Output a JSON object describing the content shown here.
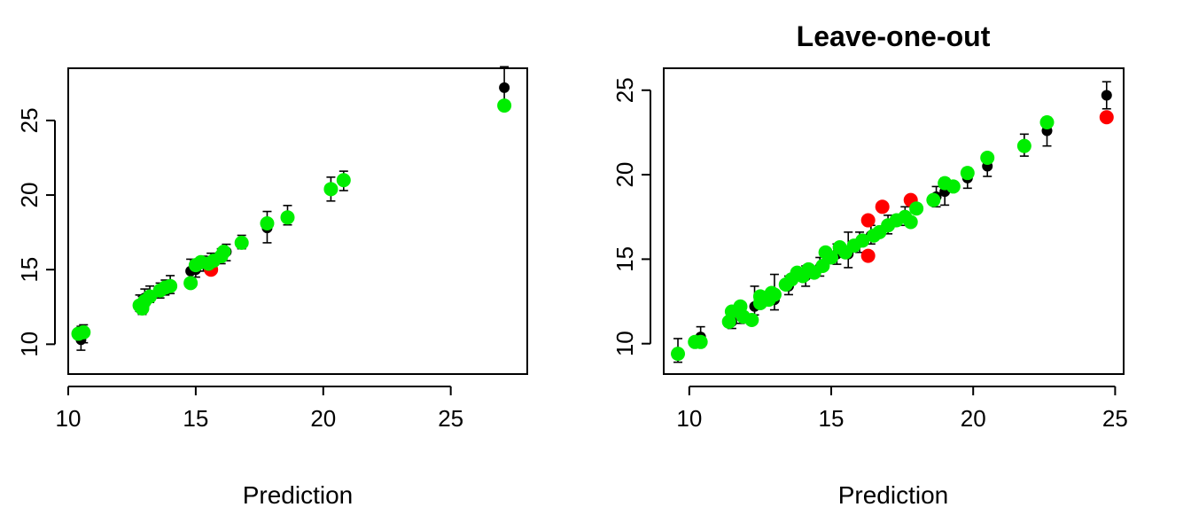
{
  "chart_data": [
    {
      "type": "scatter",
      "title": "",
      "xlabel": "Prediction",
      "ylabel": "",
      "xlim": [
        10,
        28
      ],
      "ylim": [
        8,
        28.5
      ],
      "x_ticks": [
        10,
        15,
        20,
        25
      ],
      "y_ticks": [
        10,
        15,
        20,
        25
      ],
      "grid": false,
      "colors": {
        "black": "#000000",
        "red": "#ff0000",
        "green": "#00ee00"
      },
      "black_points": [
        {
          "x": 10.5,
          "y": 10.3,
          "lo": 9.6,
          "hi": 11.2
        },
        {
          "x": 10.6,
          "y": 10.8,
          "lo": 10.1,
          "hi": 11.3
        },
        {
          "x": 12.8,
          "y": 12.7,
          "lo": 12.2,
          "hi": 13.3
        },
        {
          "x": 12.9,
          "y": 12.6,
          "lo": 12.0,
          "hi": 13.2
        },
        {
          "x": 13.0,
          "y": 13.1,
          "lo": 12.5,
          "hi": 13.7
        },
        {
          "x": 13.2,
          "y": 13.3,
          "lo": 12.8,
          "hi": 13.9
        },
        {
          "x": 13.6,
          "y": 13.6,
          "lo": 13.1,
          "hi": 14.1
        },
        {
          "x": 13.8,
          "y": 13.8,
          "lo": 13.3,
          "hi": 14.3
        },
        {
          "x": 14.0,
          "y": 14.0,
          "lo": 13.4,
          "hi": 14.6
        },
        {
          "x": 14.8,
          "y": 14.9,
          "lo": 14.1,
          "hi": 15.7
        },
        {
          "x": 15.0,
          "y": 15.0,
          "lo": 14.5,
          "hi": 15.6
        },
        {
          "x": 15.3,
          "y": 15.4,
          "lo": 14.9,
          "hi": 15.9
        },
        {
          "x": 15.6,
          "y": 15.6,
          "lo": 15.1,
          "hi": 16.1
        },
        {
          "x": 16.0,
          "y": 15.9,
          "lo": 15.4,
          "hi": 16.4
        },
        {
          "x": 16.2,
          "y": 16.2,
          "lo": 15.6,
          "hi": 16.7
        },
        {
          "x": 16.8,
          "y": 16.8,
          "lo": 16.4,
          "hi": 17.3
        },
        {
          "x": 17.8,
          "y": 17.8,
          "lo": 16.8,
          "hi": 18.9
        },
        {
          "x": 18.6,
          "y": 18.6,
          "lo": 18.0,
          "hi": 19.3
        },
        {
          "x": 20.3,
          "y": 20.4,
          "lo": 19.6,
          "hi": 21.2
        },
        {
          "x": 20.8,
          "y": 21.0,
          "lo": 20.3,
          "hi": 21.6
        },
        {
          "x": 27.1,
          "y": 27.2,
          "lo": 26.3,
          "hi": 28.6
        }
      ],
      "red_points": [
        {
          "x": 15.6,
          "y": 15.0
        }
      ],
      "green_points": [
        {
          "x": 10.4,
          "y": 10.7
        },
        {
          "x": 10.6,
          "y": 10.8
        },
        {
          "x": 12.8,
          "y": 12.6
        },
        {
          "x": 12.9,
          "y": 12.4
        },
        {
          "x": 13.0,
          "y": 12.9
        },
        {
          "x": 13.2,
          "y": 13.2
        },
        {
          "x": 13.6,
          "y": 13.6
        },
        {
          "x": 13.8,
          "y": 13.8
        },
        {
          "x": 14.0,
          "y": 13.9
        },
        {
          "x": 14.8,
          "y": 14.1
        },
        {
          "x": 15.0,
          "y": 15.3
        },
        {
          "x": 15.2,
          "y": 15.5
        },
        {
          "x": 15.5,
          "y": 15.4
        },
        {
          "x": 15.7,
          "y": 15.6
        },
        {
          "x": 16.0,
          "y": 15.9
        },
        {
          "x": 16.1,
          "y": 16.2
        },
        {
          "x": 16.8,
          "y": 16.8
        },
        {
          "x": 17.8,
          "y": 18.1
        },
        {
          "x": 18.6,
          "y": 18.5
        },
        {
          "x": 20.3,
          "y": 20.4
        },
        {
          "x": 20.8,
          "y": 21.0
        },
        {
          "x": 27.1,
          "y": 26.0
        }
      ]
    },
    {
      "type": "scatter",
      "title": "Leave-one-out",
      "xlabel": "Prediction",
      "ylabel": "",
      "xlim": [
        9.1,
        25.3
      ],
      "ylim": [
        8.2,
        26.3
      ],
      "x_ticks": [
        10,
        15,
        20,
        25
      ],
      "y_ticks": [
        10,
        15,
        20,
        25
      ],
      "grid": false,
      "colors": {
        "black": "#000000",
        "red": "#ff0000",
        "green": "#00ee00"
      },
      "black_points": [
        {
          "x": 9.6,
          "y": 9.5,
          "lo": 8.9,
          "hi": 10.3
        },
        {
          "x": 10.4,
          "y": 10.4,
          "lo": 9.8,
          "hi": 11.0
        },
        {
          "x": 11.5,
          "y": 11.3,
          "lo": 10.9,
          "hi": 11.9
        },
        {
          "x": 11.8,
          "y": 11.7,
          "lo": 11.2,
          "hi": 12.3
        },
        {
          "x": 12.3,
          "y": 12.2,
          "lo": 11.7,
          "hi": 13.4
        },
        {
          "x": 13.0,
          "y": 12.6,
          "lo": 12.0,
          "hi": 14.1
        },
        {
          "x": 13.5,
          "y": 13.4,
          "lo": 12.9,
          "hi": 14.0
        },
        {
          "x": 14.1,
          "y": 14.0,
          "lo": 13.4,
          "hi": 14.6
        },
        {
          "x": 14.6,
          "y": 14.5,
          "lo": 14.0,
          "hi": 15.1
        },
        {
          "x": 15.2,
          "y": 15.3,
          "lo": 14.7,
          "hi": 15.9
        },
        {
          "x": 15.6,
          "y": 15.3,
          "lo": 14.5,
          "hi": 16.6
        },
        {
          "x": 16.0,
          "y": 16.0,
          "lo": 15.4,
          "hi": 16.6
        },
        {
          "x": 16.4,
          "y": 16.4,
          "lo": 15.9,
          "hi": 17.0
        },
        {
          "x": 17.0,
          "y": 17.0,
          "lo": 16.5,
          "hi": 17.6
        },
        {
          "x": 17.6,
          "y": 17.6,
          "lo": 17.0,
          "hi": 18.1
        },
        {
          "x": 18.7,
          "y": 18.7,
          "lo": 18.1,
          "hi": 19.3
        },
        {
          "x": 19.0,
          "y": 19.0,
          "lo": 18.2,
          "hi": 19.8
        },
        {
          "x": 19.8,
          "y": 19.8,
          "lo": 19.2,
          "hi": 20.4
        },
        {
          "x": 20.5,
          "y": 20.5,
          "lo": 19.9,
          "hi": 21.1
        },
        {
          "x": 21.8,
          "y": 21.8,
          "lo": 21.1,
          "hi": 22.4
        },
        {
          "x": 22.6,
          "y": 22.6,
          "lo": 21.7,
          "hi": 23.4
        },
        {
          "x": 24.7,
          "y": 24.7,
          "lo": 23.9,
          "hi": 25.5
        }
      ],
      "red_points": [
        {
          "x": 16.3,
          "y": 17.3
        },
        {
          "x": 16.8,
          "y": 18.1
        },
        {
          "x": 17.8,
          "y": 18.5
        },
        {
          "x": 16.3,
          "y": 15.2
        },
        {
          "x": 24.7,
          "y": 23.4
        }
      ],
      "green_points": [
        {
          "x": 9.6,
          "y": 9.4
        },
        {
          "x": 10.2,
          "y": 10.1
        },
        {
          "x": 10.4,
          "y": 10.1
        },
        {
          "x": 11.4,
          "y": 11.3
        },
        {
          "x": 11.5,
          "y": 11.9
        },
        {
          "x": 11.8,
          "y": 12.2
        },
        {
          "x": 11.9,
          "y": 11.6
        },
        {
          "x": 12.2,
          "y": 11.4
        },
        {
          "x": 12.5,
          "y": 12.4
        },
        {
          "x": 12.5,
          "y": 12.8
        },
        {
          "x": 12.8,
          "y": 12.6
        },
        {
          "x": 12.9,
          "y": 13.0
        },
        {
          "x": 13.0,
          "y": 12.9
        },
        {
          "x": 13.4,
          "y": 13.5
        },
        {
          "x": 13.6,
          "y": 13.8
        },
        {
          "x": 13.8,
          "y": 14.2
        },
        {
          "x": 14.0,
          "y": 14.0
        },
        {
          "x": 14.2,
          "y": 14.4
        },
        {
          "x": 14.4,
          "y": 14.2
        },
        {
          "x": 14.7,
          "y": 14.6
        },
        {
          "x": 14.8,
          "y": 15.4
        },
        {
          "x": 15.0,
          "y": 15.1
        },
        {
          "x": 15.3,
          "y": 15.7
        },
        {
          "x": 15.5,
          "y": 15.4
        },
        {
          "x": 15.8,
          "y": 15.8
        },
        {
          "x": 16.1,
          "y": 16.1
        },
        {
          "x": 16.5,
          "y": 16.4
        },
        {
          "x": 16.7,
          "y": 16.6
        },
        {
          "x": 17.0,
          "y": 17.0
        },
        {
          "x": 17.3,
          "y": 17.3
        },
        {
          "x": 17.6,
          "y": 17.5
        },
        {
          "x": 17.8,
          "y": 17.2
        },
        {
          "x": 18.0,
          "y": 18.0
        },
        {
          "x": 18.6,
          "y": 18.5
        },
        {
          "x": 19.0,
          "y": 19.5
        },
        {
          "x": 19.3,
          "y": 19.3
        },
        {
          "x": 19.8,
          "y": 20.1
        },
        {
          "x": 20.5,
          "y": 21.0
        },
        {
          "x": 21.8,
          "y": 21.7
        },
        {
          "x": 22.6,
          "y": 23.1
        }
      ]
    }
  ]
}
